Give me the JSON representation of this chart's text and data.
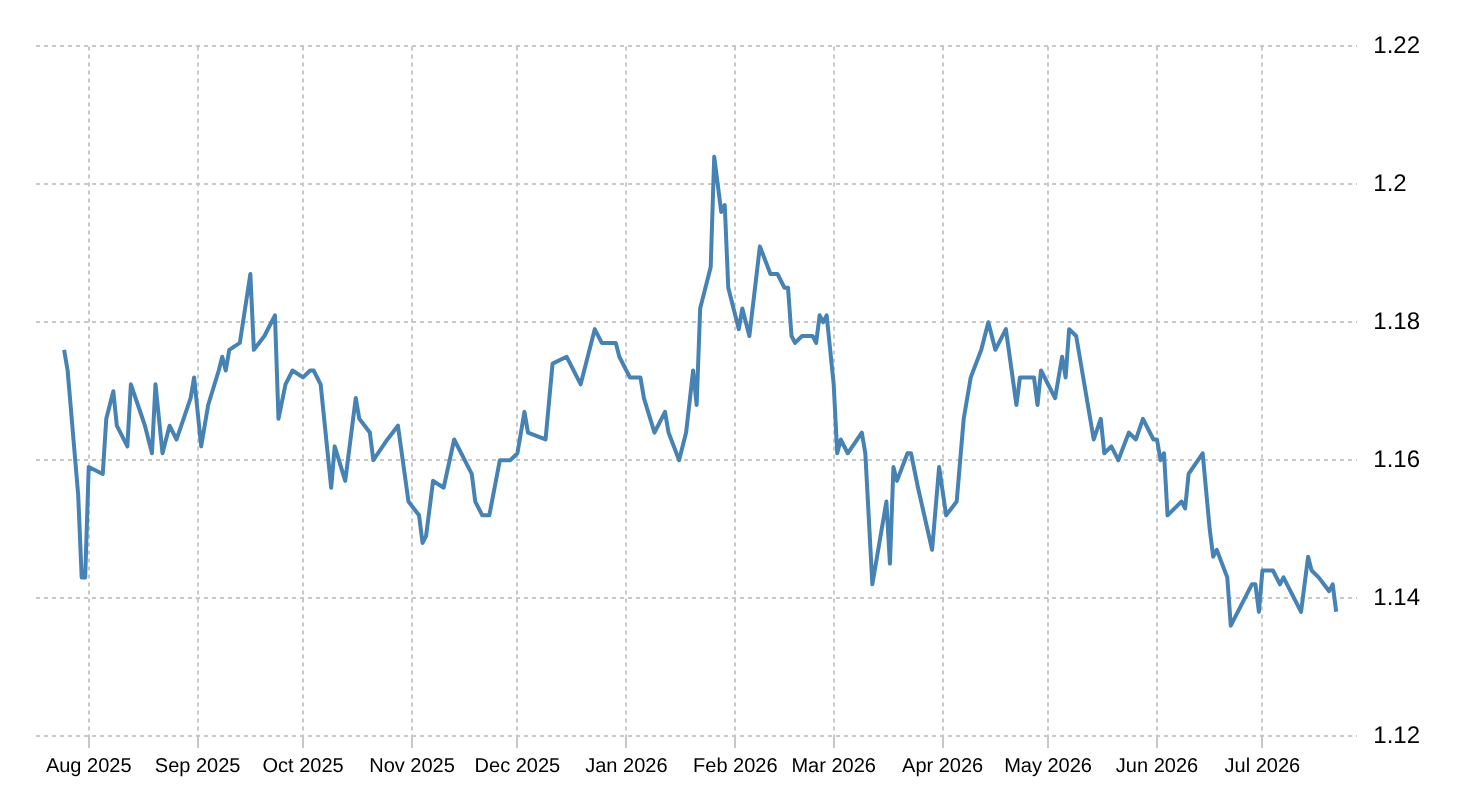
{
  "chart_data": {
    "type": "line",
    "x": [
      "2025-07-25",
      "2025-07-26",
      "2025-07-29",
      "2025-07-30",
      "2025-07-31",
      "2025-08-01",
      "2025-08-05",
      "2025-08-06",
      "2025-08-08",
      "2025-08-09",
      "2025-08-12",
      "2025-08-13",
      "2025-08-15",
      "2025-08-17",
      "2025-08-19",
      "2025-08-20",
      "2025-08-22",
      "2025-08-24",
      "2025-08-26",
      "2025-08-30",
      "2025-08-31",
      "2025-09-02",
      "2025-09-04",
      "2025-09-07",
      "2025-09-08",
      "2025-09-09",
      "2025-09-10",
      "2025-09-13",
      "2025-09-16",
      "2025-09-17",
      "2025-09-20",
      "2025-09-23",
      "2025-09-24",
      "2025-09-26",
      "2025-09-28",
      "2025-10-01",
      "2025-10-03",
      "2025-10-04",
      "2025-10-06",
      "2025-10-07",
      "2025-10-09",
      "2025-10-10",
      "2025-10-13",
      "2025-10-16",
      "2025-10-17",
      "2025-10-20",
      "2025-10-21",
      "2025-10-25",
      "2025-10-28",
      "2025-10-31",
      "2025-11-03",
      "2025-11-04",
      "2025-11-05",
      "2025-11-07",
      "2025-11-10",
      "2025-11-13",
      "2025-11-18",
      "2025-11-19",
      "2025-11-21",
      "2025-11-23",
      "2025-11-26",
      "2025-11-29",
      "2025-12-01",
      "2025-12-03",
      "2025-12-04",
      "2025-12-09",
      "2025-12-11",
      "2025-12-15",
      "2025-12-16",
      "2025-12-19",
      "2025-12-23",
      "2025-12-25",
      "2025-12-29",
      "2025-12-30",
      "2026-01-02",
      "2026-01-05",
      "2026-01-06",
      "2026-01-09",
      "2026-01-12",
      "2026-01-13",
      "2026-01-16",
      "2026-01-18",
      "2026-01-20",
      "2026-01-21",
      "2026-01-22",
      "2026-01-25",
      "2026-01-26",
      "2026-01-28",
      "2026-01-29",
      "2026-01-30",
      "2026-02-02",
      "2026-02-03",
      "2026-02-05",
      "2026-02-08",
      "2026-02-11",
      "2026-02-13",
      "2026-02-15",
      "2026-02-16",
      "2026-02-17",
      "2026-02-18",
      "2026-02-20",
      "2026-02-23",
      "2026-02-24",
      "2026-02-25",
      "2026-02-26",
      "2026-02-27",
      "2026-03-01",
      "2026-03-02",
      "2026-03-03",
      "2026-03-05",
      "2026-03-09",
      "2026-03-10",
      "2026-03-12",
      "2026-03-16",
      "2026-03-17",
      "2026-03-18",
      "2026-03-19",
      "2026-03-22",
      "2026-03-23",
      "2026-03-25",
      "2026-03-29",
      "2026-03-31",
      "2026-04-02",
      "2026-04-05",
      "2026-04-07",
      "2026-04-09",
      "2026-04-12",
      "2026-04-14",
      "2026-04-16",
      "2026-04-19",
      "2026-04-22",
      "2026-04-23",
      "2026-04-26",
      "2026-04-27",
      "2026-04-28",
      "2026-04-29",
      "2026-05-03",
      "2026-05-05",
      "2026-05-06",
      "2026-05-07",
      "2026-05-09",
      "2026-05-14",
      "2026-05-16",
      "2026-05-17",
      "2026-05-19",
      "2026-05-21",
      "2026-05-24",
      "2026-05-26",
      "2026-05-28",
      "2026-05-31",
      "2026-06-01",
      "2026-06-02",
      "2026-06-03",
      "2026-06-04",
      "2026-06-06",
      "2026-06-08",
      "2026-06-09",
      "2026-06-10",
      "2026-06-14",
      "2026-06-16",
      "2026-06-17",
      "2026-06-18",
      "2026-06-21",
      "2026-06-22",
      "2026-06-28",
      "2026-06-29",
      "2026-06-30",
      "2026-07-01",
      "2026-07-04",
      "2026-07-06",
      "2026-07-07",
      "2026-07-12",
      "2026-07-14",
      "2026-07-15",
      "2026-07-17",
      "2026-07-20",
      "2026-07-21",
      "2026-07-22"
    ],
    "series": [
      {
        "color": "#4682b4",
        "values": [
          1.176,
          1.173,
          1.155,
          1.143,
          1.143,
          1.159,
          1.158,
          1.166,
          1.17,
          1.165,
          1.162,
          1.171,
          1.168,
          1.165,
          1.161,
          1.171,
          1.161,
          1.165,
          1.163,
          1.169,
          1.172,
          1.162,
          1.168,
          1.173,
          1.175,
          1.173,
          1.176,
          1.177,
          1.187,
          1.176,
          1.178,
          1.181,
          1.166,
          1.171,
          1.173,
          1.172,
          1.173,
          1.173,
          1.171,
          1.166,
          1.156,
          1.162,
          1.157,
          1.169,
          1.166,
          1.164,
          1.16,
          1.163,
          1.165,
          1.154,
          1.152,
          1.148,
          1.149,
          1.157,
          1.156,
          1.163,
          1.158,
          1.154,
          1.152,
          1.152,
          1.16,
          1.16,
          1.161,
          1.167,
          1.164,
          1.163,
          1.174,
          1.175,
          1.174,
          1.171,
          1.179,
          1.177,
          1.177,
          1.175,
          1.172,
          1.172,
          1.169,
          1.164,
          1.167,
          1.164,
          1.16,
          1.164,
          1.173,
          1.168,
          1.182,
          1.188,
          1.204,
          1.196,
          1.197,
          1.185,
          1.179,
          1.182,
          1.178,
          1.191,
          1.187,
          1.187,
          1.185,
          1.185,
          1.178,
          1.177,
          1.178,
          1.178,
          1.177,
          1.181,
          1.18,
          1.181,
          1.171,
          1.161,
          1.163,
          1.161,
          1.164,
          1.161,
          1.142,
          1.154,
          1.145,
          1.159,
          1.157,
          1.161,
          1.161,
          1.156,
          1.147,
          1.159,
          1.152,
          1.154,
          1.166,
          1.172,
          1.176,
          1.18,
          1.176,
          1.179,
          1.168,
          1.172,
          1.172,
          1.172,
          1.168,
          1.173,
          1.169,
          1.175,
          1.172,
          1.179,
          1.178,
          1.163,
          1.166,
          1.161,
          1.162,
          1.16,
          1.164,
          1.163,
          1.166,
          1.163,
          1.163,
          1.16,
          1.161,
          1.152,
          1.153,
          1.154,
          1.153,
          1.158,
          1.161,
          1.15,
          1.146,
          1.147,
          1.143,
          1.136,
          1.142,
          1.142,
          1.138,
          1.144,
          1.144,
          1.142,
          1.143,
          1.138,
          1.146,
          1.144,
          1.143,
          1.141,
          1.142,
          1.138
        ]
      }
    ],
    "xlim": [
      "2025-07-17",
      "2026-07-28"
    ],
    "xticks": [
      {
        "value": "2025-08-01",
        "label": "Aug 2025"
      },
      {
        "value": "2025-09-01",
        "label": "Sep 2025"
      },
      {
        "value": "2025-10-01",
        "label": "Oct 2025"
      },
      {
        "value": "2025-11-01",
        "label": "Nov 2025"
      },
      {
        "value": "2025-12-01",
        "label": "Dec 2025"
      },
      {
        "value": "2026-01-01",
        "label": "Jan 2026"
      },
      {
        "value": "2026-02-01",
        "label": "Feb 2026"
      },
      {
        "value": "2026-03-01",
        "label": "Mar 2026"
      },
      {
        "value": "2026-04-01",
        "label": "Apr 2026"
      },
      {
        "value": "2026-05-01",
        "label": "May 2026"
      },
      {
        "value": "2026-06-01",
        "label": "Jun 2026"
      },
      {
        "value": "2026-07-01",
        "label": "Jul 2026"
      }
    ],
    "ylim": [
      1.12,
      1.22
    ],
    "yticks": [
      1.12,
      1.14,
      1.16,
      1.18,
      1.2,
      1.22
    ],
    "grid": true,
    "line_style": "solid"
  }
}
